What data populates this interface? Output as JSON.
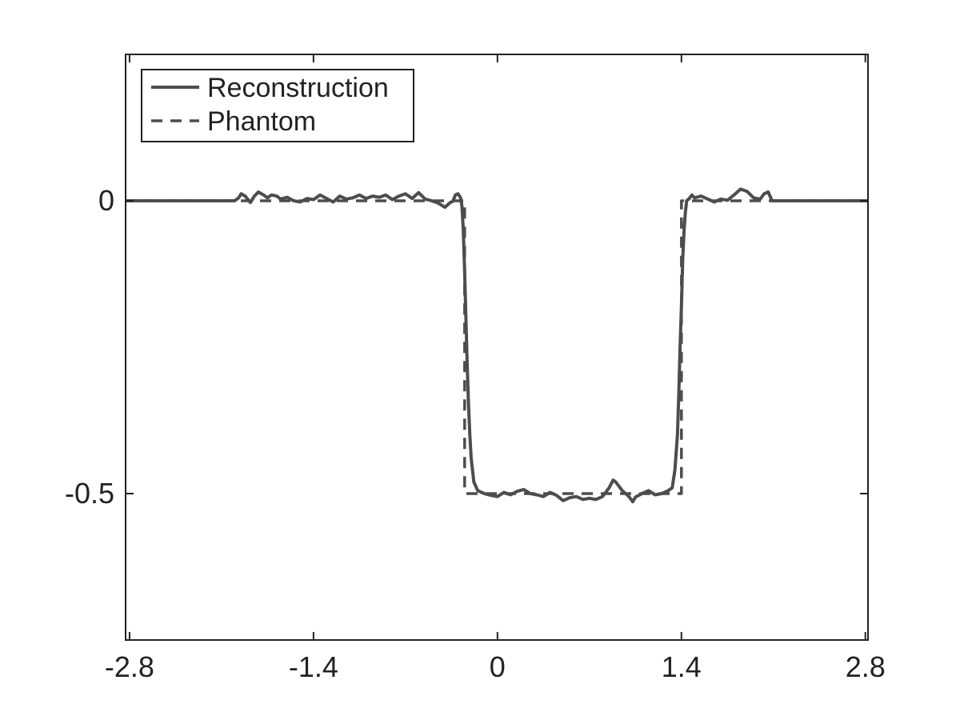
{
  "chart_data": {
    "type": "line",
    "title": "",
    "xlabel": "",
    "ylabel": "",
    "xlim": [
      -2.83,
      2.82
    ],
    "ylim": [
      -0.75,
      0.25
    ],
    "xticks": [
      -2.8,
      -1.4,
      0,
      1.4,
      2.8
    ],
    "xtick_labels": [
      "-2.8",
      "-1.4",
      "0",
      "1.4",
      "2.8"
    ],
    "yticks": [
      -0.5,
      0
    ],
    "ytick_labels": [
      "-0.5",
      "0"
    ],
    "grid": false,
    "legend_position": "top-left",
    "colors": {
      "line": "#4d4d4d",
      "axes": "#222222"
    },
    "series": [
      {
        "name": "Reconstruction",
        "style": "solid",
        "x": [
          -2.83,
          -2.0,
          -1.97,
          -1.95,
          -1.92,
          -1.88,
          -1.85,
          -1.82,
          -1.78,
          -1.75,
          -1.72,
          -1.68,
          -1.65,
          -1.6,
          -1.55,
          -1.5,
          -1.45,
          -1.4,
          -1.35,
          -1.3,
          -1.25,
          -1.2,
          -1.15,
          -1.1,
          -1.05,
          -1.0,
          -0.95,
          -0.9,
          -0.85,
          -0.8,
          -0.75,
          -0.7,
          -0.65,
          -0.6,
          -0.55,
          -0.5,
          -0.45,
          -0.4,
          -0.36,
          -0.34,
          -0.32,
          -0.3,
          -0.28,
          -0.27,
          -0.26,
          -0.25,
          -0.24,
          -0.23,
          -0.22,
          -0.21,
          -0.2,
          -0.18,
          -0.15,
          -0.1,
          -0.05,
          0.0,
          0.05,
          0.1,
          0.15,
          0.2,
          0.25,
          0.3,
          0.35,
          0.4,
          0.45,
          0.5,
          0.55,
          0.6,
          0.65,
          0.7,
          0.75,
          0.8,
          0.85,
          0.88,
          0.9,
          0.95,
          1.0,
          1.03,
          1.05,
          1.1,
          1.15,
          1.2,
          1.25,
          1.3,
          1.33,
          1.35,
          1.37,
          1.38,
          1.39,
          1.4,
          1.41,
          1.42,
          1.43,
          1.44,
          1.46,
          1.48,
          1.5,
          1.55,
          1.6,
          1.65,
          1.7,
          1.75,
          1.8,
          1.85,
          1.9,
          1.95,
          2.0,
          2.03,
          2.06,
          2.09,
          2.82
        ],
        "y": [
          0.0,
          0.0,
          0.005,
          0.012,
          0.008,
          -0.003,
          0.008,
          0.015,
          0.01,
          0.005,
          0.01,
          0.008,
          0.003,
          0.006,
          0.0,
          -0.002,
          0.004,
          0.002,
          0.01,
          0.004,
          -0.002,
          0.008,
          0.003,
          0.005,
          0.01,
          0.004,
          0.008,
          0.006,
          0.01,
          0.002,
          0.008,
          0.012,
          0.004,
          0.014,
          0.003,
          0.0,
          -0.004,
          -0.011,
          -0.003,
          -0.001,
          0.01,
          0.012,
          0.005,
          -0.01,
          -0.05,
          -0.12,
          -0.2,
          -0.28,
          -0.35,
          -0.4,
          -0.44,
          -0.48,
          -0.495,
          -0.5,
          -0.503,
          -0.505,
          -0.498,
          -0.502,
          -0.496,
          -0.493,
          -0.5,
          -0.502,
          -0.505,
          -0.498,
          -0.503,
          -0.512,
          -0.507,
          -0.505,
          -0.51,
          -0.508,
          -0.51,
          -0.505,
          -0.49,
          -0.477,
          -0.48,
          -0.495,
          -0.505,
          -0.514,
          -0.506,
          -0.5,
          -0.495,
          -0.502,
          -0.5,
          -0.495,
          -0.49,
          -0.46,
          -0.4,
          -0.33,
          -0.25,
          -0.18,
          -0.1,
          -0.05,
          -0.02,
          0.0,
          0.004,
          0.01,
          0.005,
          0.008,
          0.003,
          -0.002,
          0.003,
          0.001,
          0.01,
          0.02,
          0.016,
          0.005,
          0.003,
          0.012,
          0.015,
          0.0,
          0.0
        ]
      },
      {
        "name": "Phantom",
        "style": "dashed",
        "x": [
          -2.83,
          -0.25,
          -0.25,
          1.4,
          1.4,
          2.82
        ],
        "y": [
          0.0,
          0.0,
          -0.5,
          -0.5,
          0.0,
          0.0
        ]
      }
    ]
  }
}
